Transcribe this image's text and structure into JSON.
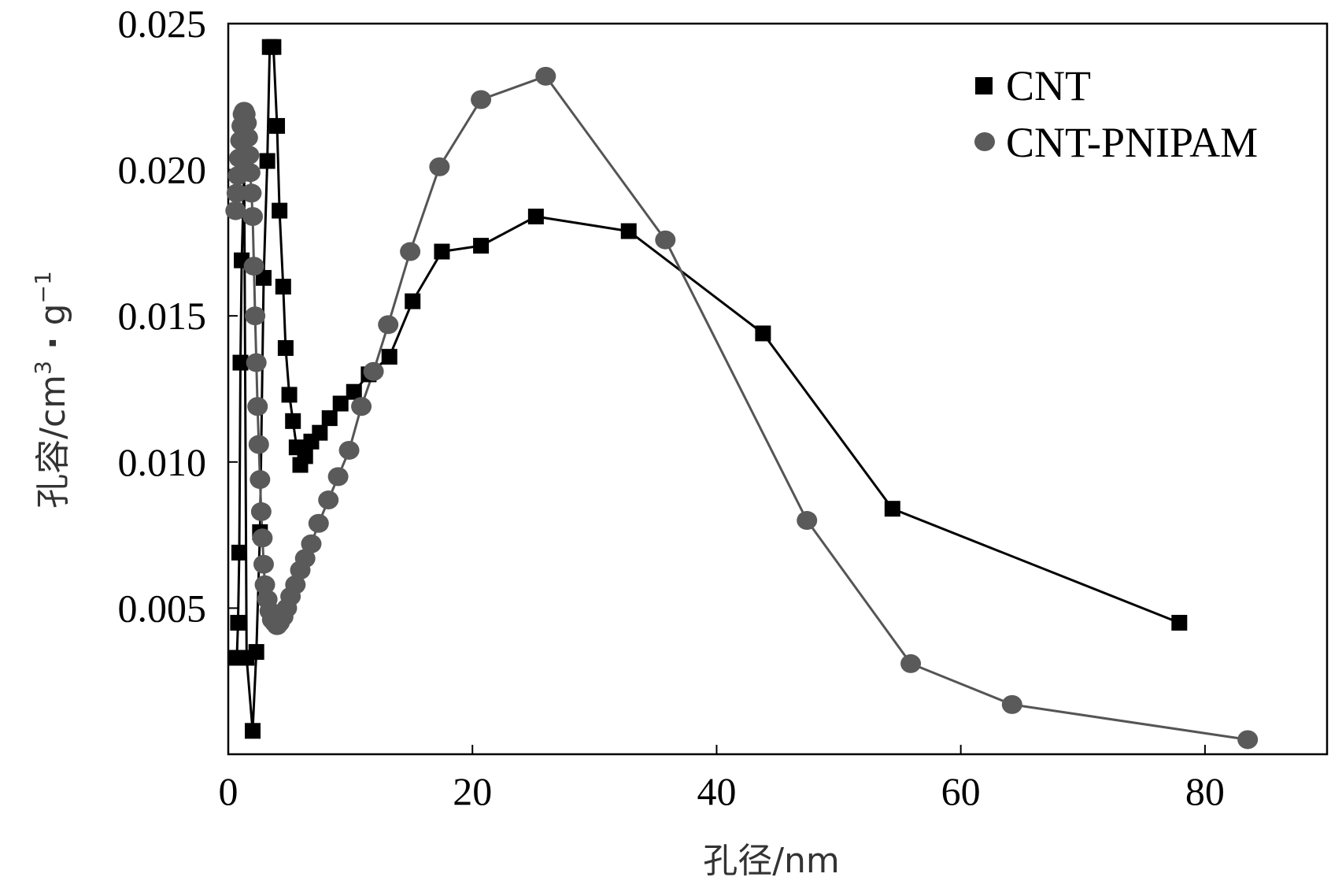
{
  "chart_data": {
    "type": "line",
    "title": "",
    "xlabel": "孔径/nm",
    "ylabel": "孔容/cm³ · g⁻¹",
    "ylabel_parts": {
      "main": "孔容/cm",
      "sup1": "3",
      "dot": "·",
      "g": "g",
      "sup2": "−1"
    },
    "xlim": [
      0,
      90
    ],
    "ylim": [
      0.0,
      0.025
    ],
    "xticks": [
      0,
      20,
      40,
      60,
      80
    ],
    "xtick_labels": [
      "0",
      "20",
      "40",
      "60",
      "80"
    ],
    "yticks": [
      0.005,
      0.01,
      0.015,
      0.02,
      0.025
    ],
    "ytick_labels": [
      "0.005",
      "0.010",
      "0.015",
      "0.020",
      "0.025"
    ],
    "grid": false,
    "legend_position": "top-right",
    "series": [
      {
        "name": "CNT",
        "marker": "square",
        "color": "#000000",
        "line_color": "#000000",
        "x": [
          0.7,
          0.8,
          0.9,
          1.0,
          1.1,
          1.3,
          1.5,
          2.0,
          2.3,
          2.6,
          2.9,
          3.2,
          3.4,
          3.7,
          4.0,
          4.2,
          4.5,
          4.7,
          5.0,
          5.3,
          5.6,
          5.9,
          6.3,
          6.8,
          7.5,
          8.3,
          9.2,
          10.3,
          11.5,
          13.2,
          15.1,
          17.5,
          20.7,
          25.2,
          32.8,
          43.8,
          54.4,
          77.9
        ],
        "y": [
          0.0033,
          0.0045,
          0.0069,
          0.0134,
          0.0169,
          0.02,
          0.0033,
          0.0008,
          0.0035,
          0.0076,
          0.0163,
          0.0203,
          0.0242,
          0.0242,
          0.0215,
          0.0186,
          0.016,
          0.0139,
          0.0123,
          0.0114,
          0.0105,
          0.0099,
          0.0102,
          0.0107,
          0.011,
          0.0115,
          0.012,
          0.0124,
          0.013,
          0.0136,
          0.0155,
          0.0172,
          0.0174,
          0.0184,
          0.0179,
          0.0144,
          0.0084,
          0.0045
        ]
      },
      {
        "name": "CNT-PNIPAM",
        "marker": "circle",
        "color": "#5a5a5a",
        "line_color": "#555555",
        "x": [
          0.6,
          0.7,
          0.8,
          0.9,
          1.0,
          1.1,
          1.2,
          1.3,
          1.4,
          1.5,
          1.6,
          1.7,
          1.8,
          1.9,
          2.0,
          2.1,
          2.2,
          2.3,
          2.4,
          2.5,
          2.6,
          2.7,
          2.8,
          2.9,
          3.0,
          3.2,
          3.4,
          3.6,
          3.8,
          4.0,
          4.2,
          4.5,
          4.8,
          5.1,
          5.5,
          5.9,
          6.3,
          6.8,
          7.4,
          8.2,
          9.0,
          9.9,
          10.9,
          11.9,
          13.1,
          14.9,
          17.3,
          20.7,
          26.0,
          35.8,
          47.4,
          55.9,
          64.2,
          83.5
        ],
        "y": [
          0.0186,
          0.0192,
          0.0198,
          0.0204,
          0.021,
          0.0215,
          0.0219,
          0.022,
          0.0219,
          0.0216,
          0.0211,
          0.0205,
          0.0199,
          0.0192,
          0.0184,
          0.0167,
          0.015,
          0.0134,
          0.0119,
          0.0106,
          0.0094,
          0.0083,
          0.0074,
          0.0065,
          0.0058,
          0.0053,
          0.0049,
          0.0046,
          0.0045,
          0.0044,
          0.0045,
          0.0047,
          0.005,
          0.0054,
          0.0058,
          0.0063,
          0.0067,
          0.0072,
          0.0079,
          0.0087,
          0.0095,
          0.0104,
          0.0119,
          0.0131,
          0.0147,
          0.0172,
          0.0201,
          0.0224,
          0.0232,
          0.0176,
          0.008,
          0.0031,
          0.0017,
          0.0005
        ]
      }
    ]
  }
}
